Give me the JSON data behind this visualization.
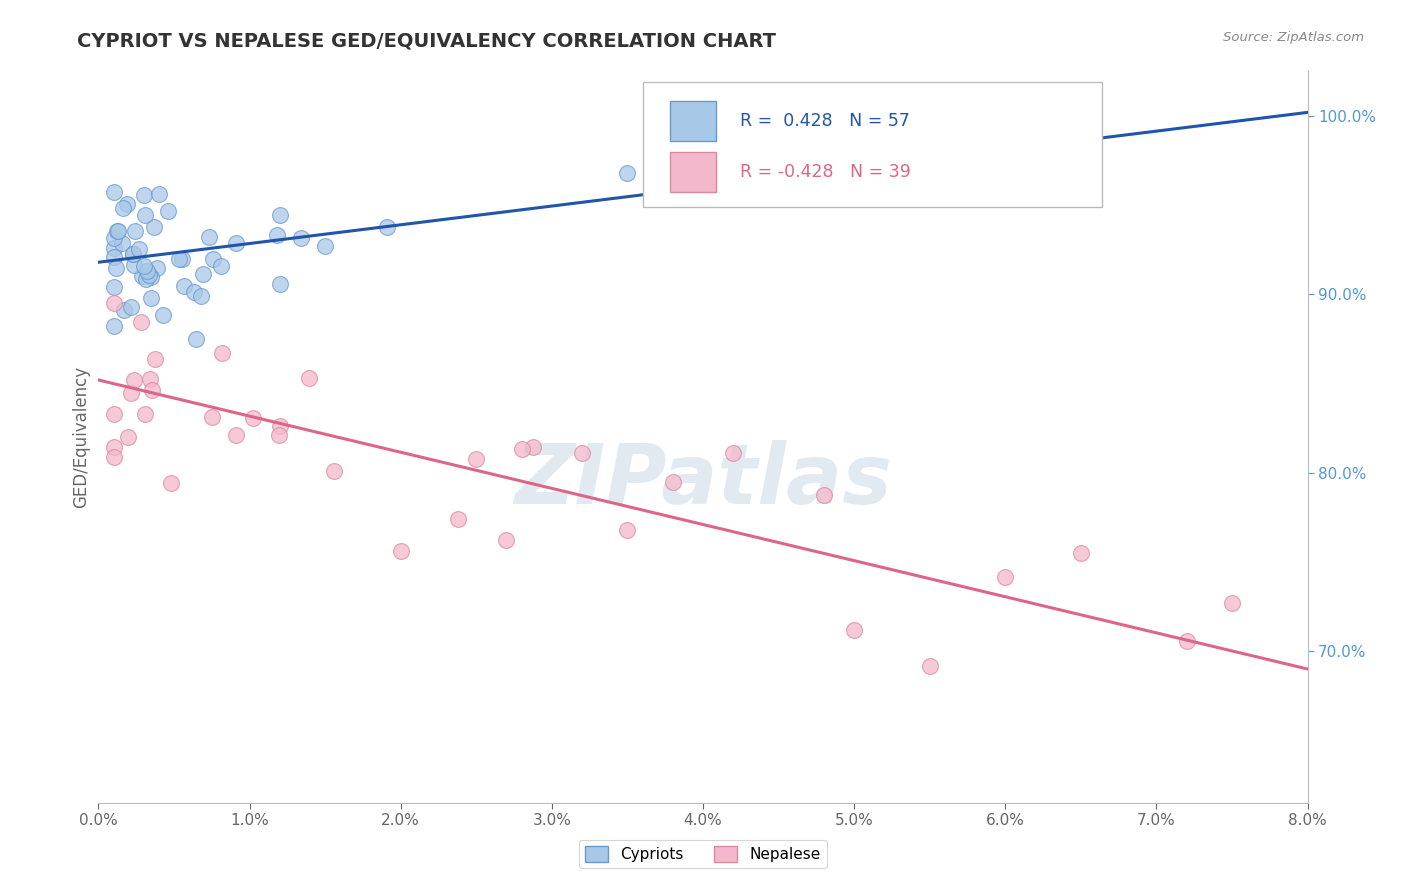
{
  "title": "CYPRIOT VS NEPALESE GED/EQUIVALENCY CORRELATION CHART",
  "ylabel": "GED/Equivalency",
  "source_text": "Source: ZipAtlas.com",
  "xlim": [
    0.0,
    0.08
  ],
  "ylim": [
    0.615,
    1.025
  ],
  "y_ticks_right": [
    0.7,
    0.8,
    0.9,
    1.0
  ],
  "y_tick_labels_right": [
    "70.0%",
    "80.0%",
    "90.0%",
    "100.0%"
  ],
  "cypriot_color": "#a8c8e8",
  "cypriot_edge_color": "#6699cc",
  "nepalese_color": "#f4b8cc",
  "nepalese_edge_color": "#dd8899",
  "trend_cypriot_color": "#2255aa",
  "trend_nepalese_color": "#dd6688",
  "R_cypriot": 0.428,
  "N_cypriot": 57,
  "R_nepalese": -0.428,
  "N_nepalese": 39,
  "cypriot_trend_y0": 0.918,
  "cypriot_trend_y1": 1.002,
  "nepalese_trend_y0": 0.852,
  "nepalese_trend_y1": 0.69,
  "watermark_color": "#d0dce8",
  "watermark_alpha": 0.6,
  "background_color": "#ffffff",
  "grid_color": "#cccccc",
  "right_axis_color": "#5599cc"
}
